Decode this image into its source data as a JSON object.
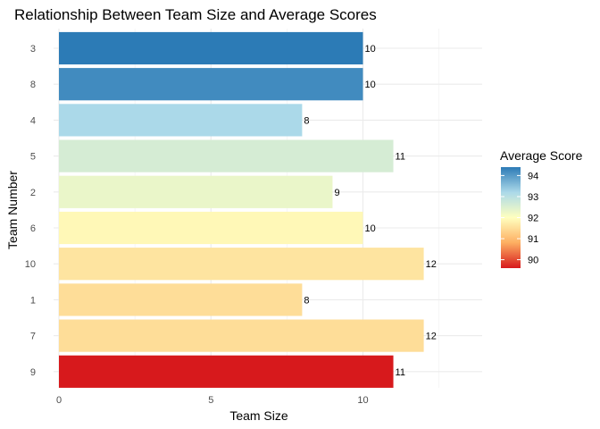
{
  "chart_data": {
    "type": "bar",
    "orientation": "horizontal",
    "title": "Relationship Between Team Size and Average Scores",
    "xlabel": "Team Size",
    "ylabel": "Team Number",
    "categories": [
      "3",
      "8",
      "4",
      "5",
      "2",
      "6",
      "10",
      "1",
      "7",
      "9"
    ],
    "values": [
      10,
      10,
      8,
      11,
      9,
      10,
      12,
      8,
      12,
      11
    ],
    "color_values": [
      94.4,
      94.2,
      93.2,
      92.6,
      92.3,
      91.9,
      91.6,
      91.5,
      91.5,
      89.6
    ],
    "x_ticks": [
      0,
      5,
      10
    ],
    "xlim": [
      0,
      12.6
    ],
    "grid": true,
    "legend": {
      "title": "Average Score",
      "position": "right",
      "ticks": [
        90,
        91,
        92,
        93,
        94
      ],
      "range": [
        89.6,
        94.4
      ],
      "palette": [
        "#d7191c",
        "#fdae61",
        "#ffffbf",
        "#abd9e9",
        "#2c7bb6"
      ]
    }
  }
}
